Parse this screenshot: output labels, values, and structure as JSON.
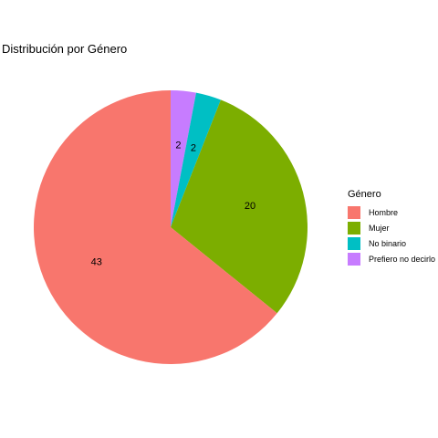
{
  "chart_data": {
    "type": "pie",
    "title": "Distribución por Género",
    "legend_title": "Género",
    "legend_position": "right",
    "categories": [
      "Hombre",
      "Mujer",
      "No binario",
      "Prefiero no decirlo"
    ],
    "values": [
      43,
      20,
      2,
      2
    ],
    "colors": [
      "#F8766D",
      "#7CAE00",
      "#00BFC4",
      "#C77CFF"
    ],
    "data_labels": [
      "43",
      "20",
      "2",
      "2"
    ]
  }
}
